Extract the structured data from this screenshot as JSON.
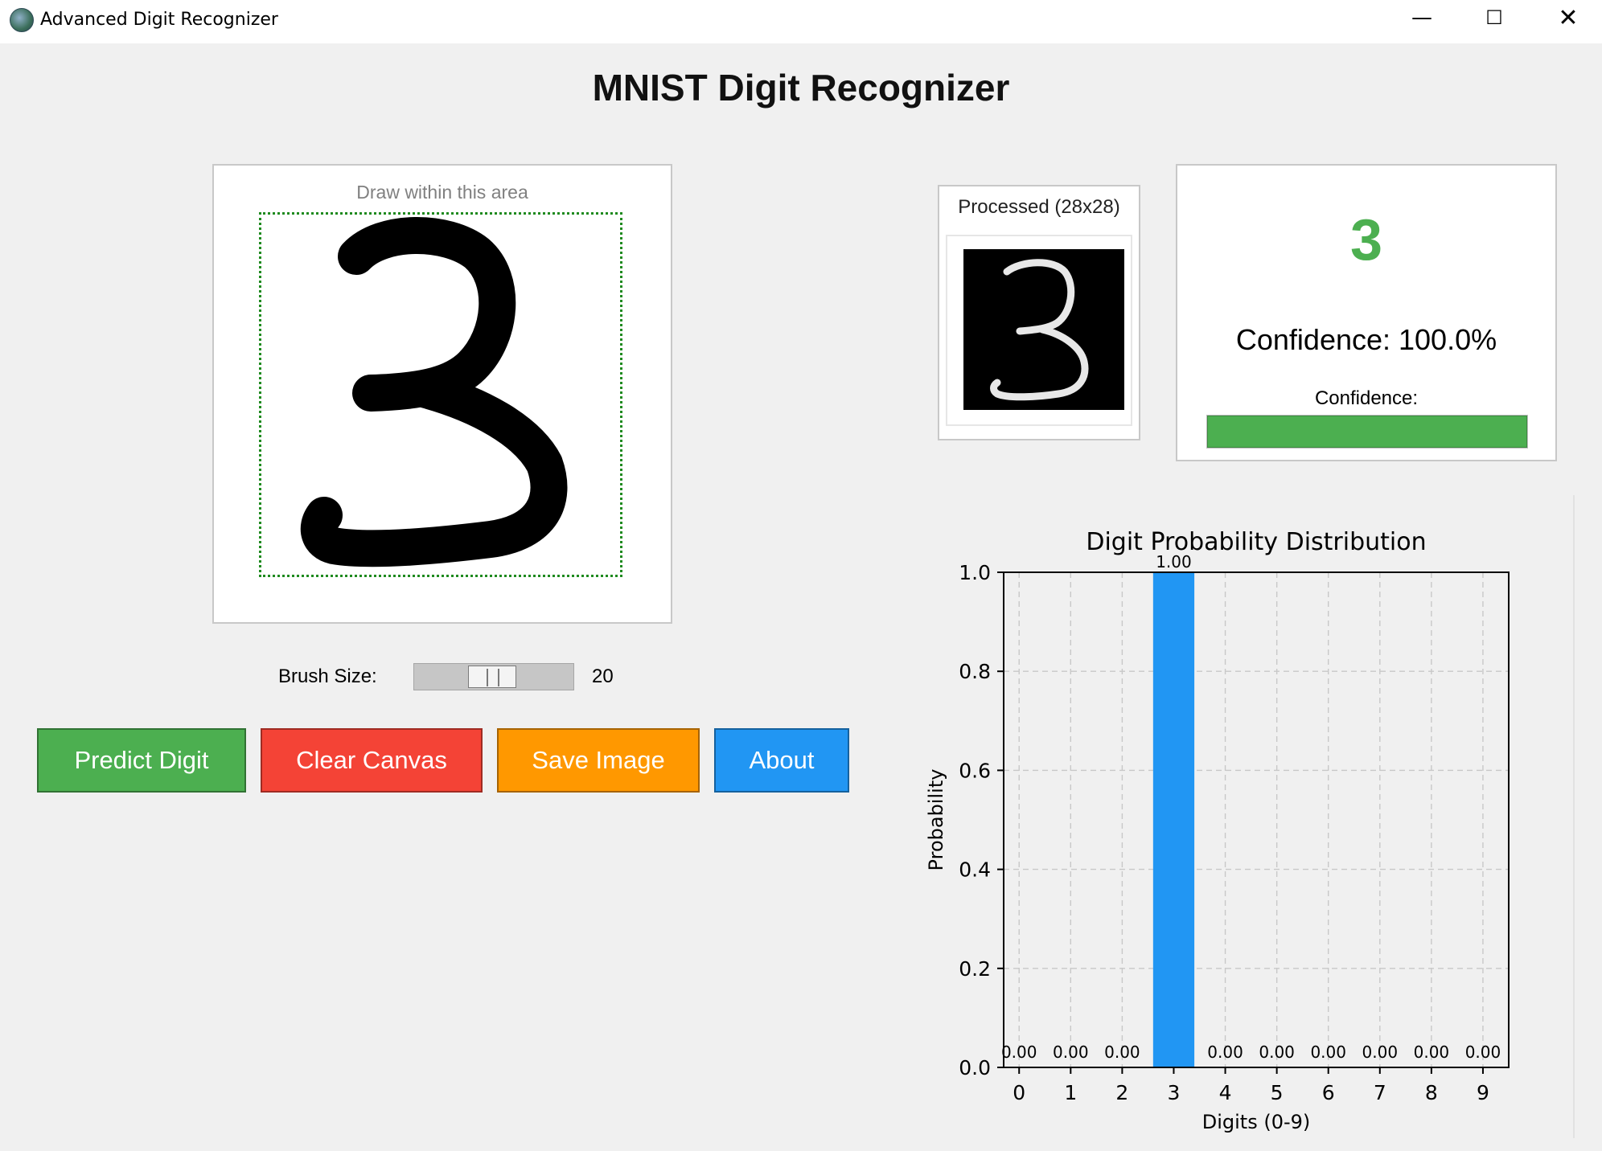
{
  "window": {
    "title": "Advanced Digit Recognizer",
    "minimize_symbol": "—",
    "maximize_symbol": "☐",
    "close_symbol": "✕"
  },
  "page": {
    "heading": "MNIST Digit Recognizer"
  },
  "drawing": {
    "hint": "Draw within this area",
    "boundary_color": "#1f8a1f"
  },
  "brush": {
    "label": "Brush Size:",
    "value": "20",
    "level": 20,
    "min": 1,
    "max": 40
  },
  "buttons": {
    "predict": "Predict Digit",
    "clear": "Clear Canvas",
    "save": "Save Image",
    "about": "About"
  },
  "colors": {
    "predict": "#4caf50",
    "clear": "#f44336",
    "save": "#ff9800",
    "about": "#2196f3",
    "bar": "#2196f3"
  },
  "processed": {
    "label": "Processed (28x28)"
  },
  "result": {
    "digit": "3",
    "confidence_text": "Confidence: 100.0%",
    "confidence_label": "Confidence:",
    "confidence_fraction": 1.0
  },
  "chart_data": {
    "type": "bar",
    "title": "Digit Probability Distribution",
    "xlabel": "Digits (0-9)",
    "ylabel": "Probability",
    "categories": [
      "0",
      "1",
      "2",
      "3",
      "4",
      "5",
      "6",
      "7",
      "8",
      "9"
    ],
    "values": [
      0.0,
      0.0,
      0.0,
      1.0,
      0.0,
      0.0,
      0.0,
      0.0,
      0.0,
      0.0
    ],
    "data_labels": [
      "0.00",
      "0.00",
      "0.00",
      "1.00",
      "0.00",
      "0.00",
      "0.00",
      "0.00",
      "0.00",
      "0.00"
    ],
    "yticks": [
      "0.0",
      "0.2",
      "0.4",
      "0.6",
      "0.8",
      "1.0"
    ],
    "ylim": [
      0,
      1
    ],
    "grid": true,
    "legend": "none"
  }
}
